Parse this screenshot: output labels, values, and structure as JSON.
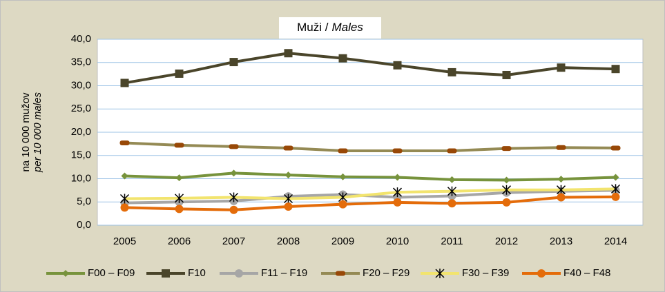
{
  "chart_data": {
    "type": "line",
    "title": [
      "Muži /",
      "Males"
    ],
    "y_label": [
      "na 10 000 mužov",
      "per 10 000 males"
    ],
    "categories": [
      "2005",
      "2006",
      "2007",
      "2008",
      "2009",
      "2010",
      "2011",
      "2012",
      "2013",
      "2014"
    ],
    "ylim": [
      0,
      40
    ],
    "yticks": [
      {
        "value": 0,
        "label": "0,0"
      },
      {
        "value": 5,
        "label": "5,0"
      },
      {
        "value": 10,
        "label": "10,0"
      },
      {
        "value": 15,
        "label": "15,0"
      },
      {
        "value": 20,
        "label": "20,0"
      },
      {
        "value": 25,
        "label": "25,0"
      },
      {
        "value": 30,
        "label": "30,0"
      },
      {
        "value": 35,
        "label": "35,0"
      },
      {
        "value": 40,
        "label": "40,0"
      }
    ],
    "grid": true,
    "legend": "bottom",
    "series": [
      {
        "name": "F00 – F09",
        "color": "#77933c",
        "marker": "diamond",
        "marker_color": "#77933c",
        "values": [
          10.6,
          10.2,
          11.2,
          10.8,
          10.4,
          10.3,
          9.8,
          9.7,
          9.9,
          10.3
        ]
      },
      {
        "name": "F10",
        "color": "#4a452a",
        "marker": "square",
        "marker_color": "#4a452a",
        "values": [
          30.6,
          32.6,
          35.1,
          37.0,
          35.9,
          34.4,
          32.9,
          32.3,
          33.9,
          33.6
        ]
      },
      {
        "name": "F11 – F19",
        "color": "#a6a6a6",
        "marker": "circle",
        "marker_color": "#a6a6a6",
        "values": [
          4.8,
          5.0,
          5.2,
          6.2,
          6.6,
          6.0,
          6.3,
          7.0,
          7.3,
          7.5
        ]
      },
      {
        "name": "F20 – F29",
        "color": "#948a54",
        "marker": "dash",
        "marker_color": "#984807",
        "values": [
          17.7,
          17.2,
          16.9,
          16.6,
          16.0,
          16.0,
          16.0,
          16.5,
          16.7,
          16.6
        ]
      },
      {
        "name": "F30 – F39",
        "color": "#f2e46e",
        "marker": "star",
        "marker_color": "#000000",
        "values": [
          5.7,
          5.8,
          6.0,
          5.7,
          6.0,
          7.1,
          7.3,
          7.6,
          7.6,
          7.8
        ]
      },
      {
        "name": "F40 – F48",
        "color": "#e46c0a",
        "marker": "circle",
        "marker_color": "#e46c0a",
        "values": [
          3.8,
          3.5,
          3.3,
          4.0,
          4.5,
          4.9,
          4.7,
          4.9,
          6.0,
          6.1
        ]
      }
    ]
  }
}
